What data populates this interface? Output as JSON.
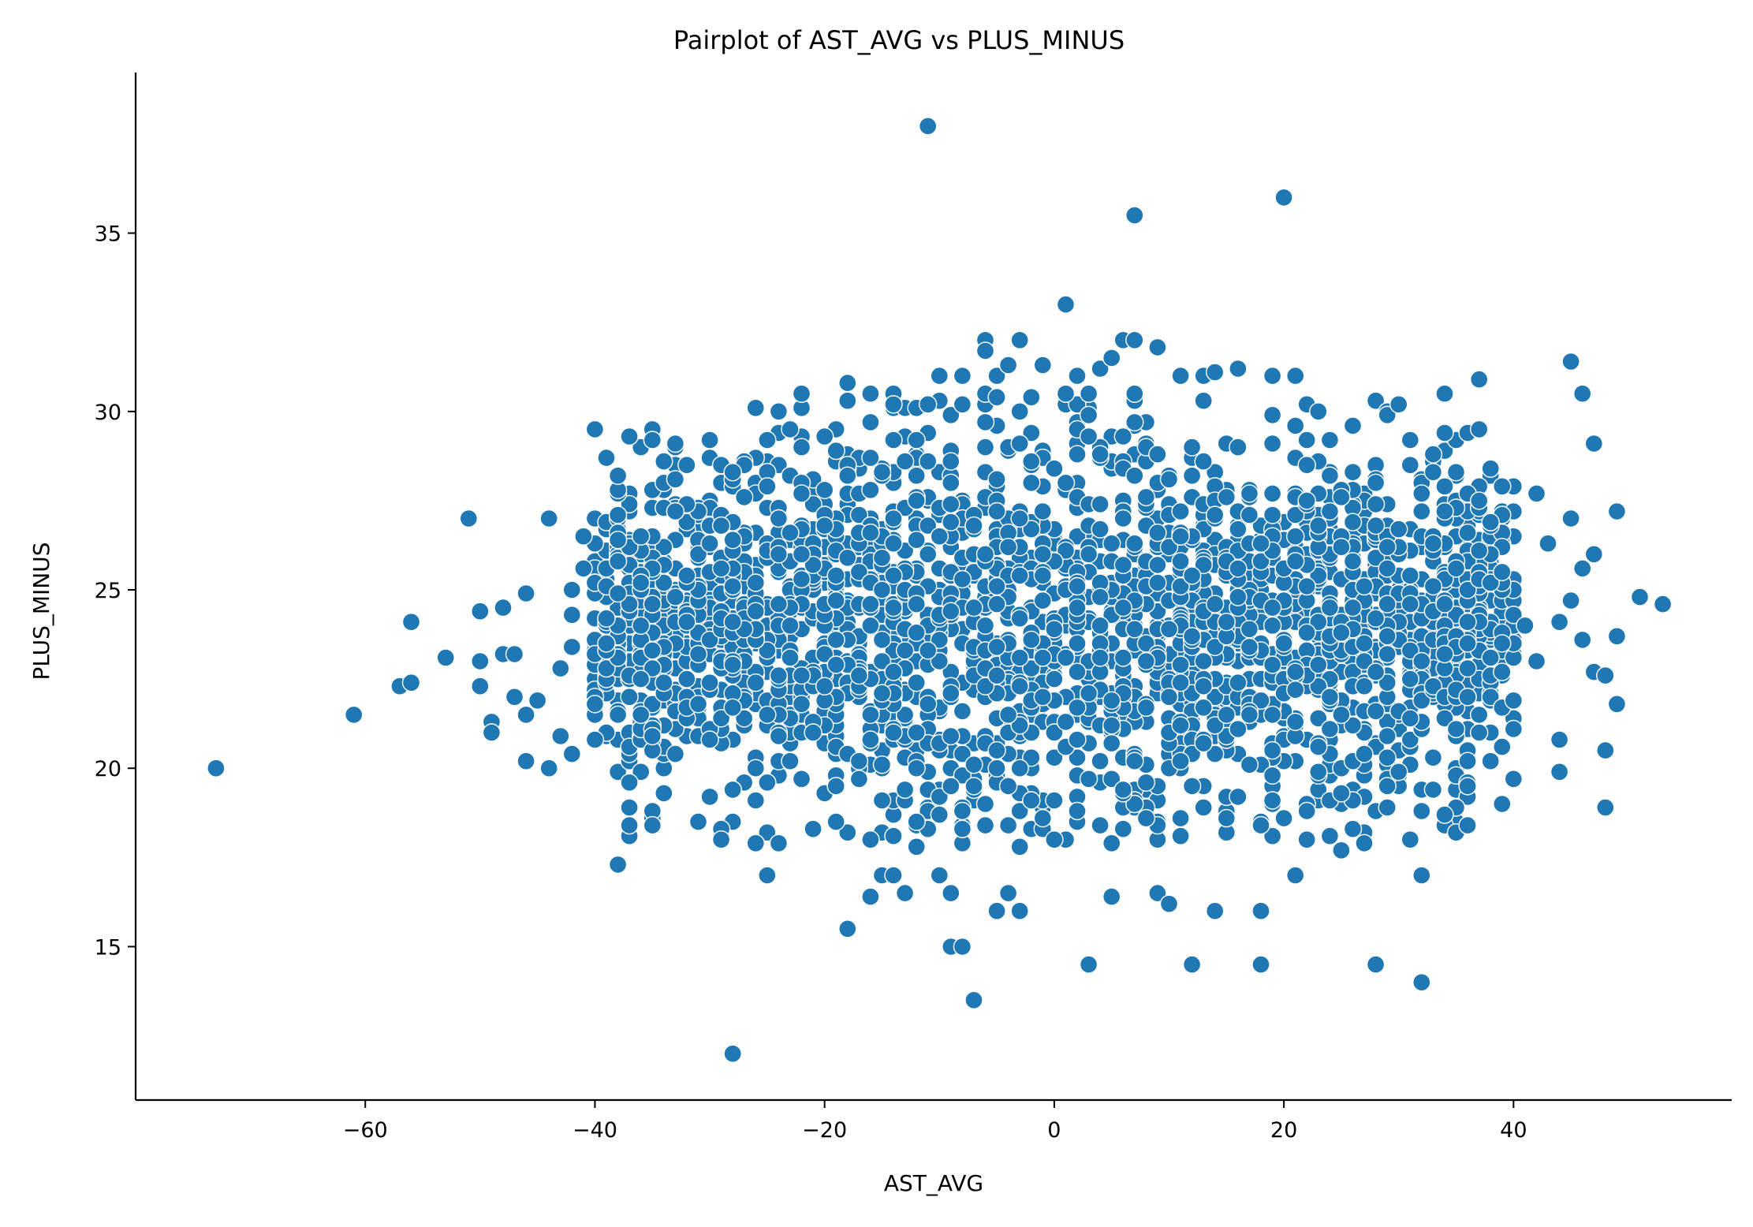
{
  "chart_data": {
    "type": "scatter",
    "title": "Pairplot of AST_AVG vs PLUS_MINUS",
    "xlabel": "AST_AVG",
    "ylabel": "PLUS_MINUS",
    "xlim": [
      -80,
      59
    ],
    "ylim": [
      10.7,
      39.5
    ],
    "xticks": [
      -60,
      -40,
      -20,
      0,
      20,
      40
    ],
    "xtick_labels": [
      "−60",
      "−40",
      "−20",
      "0",
      "20",
      "40"
    ],
    "yticks": [
      15,
      20,
      25,
      30,
      35
    ],
    "ytick_labels": [
      "15",
      "20",
      "25",
      "30",
      "35"
    ],
    "grid": false,
    "legend": "none",
    "marker_color": "#1f77b4",
    "dense_region": {
      "description_of_bulk": "dense cloud of points",
      "x_range": [
        -40,
        40
      ],
      "y_center": 24,
      "y_spread": 3
    },
    "points": [
      [
        -11,
        38.0
      ],
      [
        20,
        36.0
      ],
      [
        7,
        35.5
      ],
      [
        1,
        33.0
      ],
      [
        -73,
        20.0
      ],
      [
        -61,
        21.5
      ],
      [
        -57,
        22.3
      ],
      [
        -56,
        24.1
      ],
      [
        -56,
        22.4
      ],
      [
        -53,
        23.1
      ],
      [
        -51,
        27.0
      ],
      [
        -50,
        24.4
      ],
      [
        -50,
        23.0
      ],
      [
        -50,
        22.3
      ],
      [
        -49,
        21.3
      ],
      [
        -49,
        21.0
      ],
      [
        -48,
        24.5
      ],
      [
        -48,
        23.2
      ],
      [
        -47,
        22.0
      ],
      [
        -47,
        23.2
      ],
      [
        -46,
        20.2
      ],
      [
        -46,
        21.5
      ],
      [
        -46,
        24.9
      ],
      [
        -45,
        21.9
      ],
      [
        -44,
        27.0
      ],
      [
        -44,
        20.0
      ],
      [
        -43,
        22.8
      ],
      [
        -43,
        20.9
      ],
      [
        -42,
        25.0
      ],
      [
        -42,
        24.3
      ],
      [
        -42,
        23.4
      ],
      [
        -42,
        20.4
      ],
      [
        -41,
        26.5
      ],
      [
        -41,
        25.6
      ],
      [
        -40,
        29.5
      ],
      [
        -40,
        21.8
      ],
      [
        -40,
        20.8
      ],
      [
        -38,
        28.2
      ],
      [
        -38,
        27.1
      ],
      [
        -38,
        17.3
      ],
      [
        -37,
        29.3
      ],
      [
        -37,
        19.6
      ],
      [
        -35,
        29.2
      ],
      [
        -35,
        18.4
      ],
      [
        -33,
        29.1
      ],
      [
        -33,
        28.1
      ],
      [
        -32,
        28.5
      ],
      [
        -31,
        18.5
      ],
      [
        -30,
        29.2
      ],
      [
        -29,
        18.3
      ],
      [
        -29,
        18.0
      ],
      [
        -28,
        12.0
      ],
      [
        -28,
        28.3
      ],
      [
        -27,
        27.6
      ],
      [
        -26,
        17.9
      ],
      [
        -25,
        17.0
      ],
      [
        -24,
        30.0
      ],
      [
        -24,
        17.9
      ],
      [
        -22,
        30.5
      ],
      [
        -20,
        29.3
      ],
      [
        -18,
        30.8
      ],
      [
        -18,
        15.5
      ],
      [
        -16,
        30.5
      ],
      [
        -16,
        16.4
      ],
      [
        -15,
        17.0
      ],
      [
        -14,
        17.0
      ],
      [
        -13,
        16.5
      ],
      [
        -12,
        30.1
      ],
      [
        -11,
        30.2
      ],
      [
        -10,
        31.0
      ],
      [
        -10,
        17.0
      ],
      [
        -9,
        15.0
      ],
      [
        -9,
        16.5
      ],
      [
        -8,
        15.0
      ],
      [
        -8,
        31.0
      ],
      [
        -7,
        13.5
      ],
      [
        -6,
        32.0
      ],
      [
        -6,
        31.7
      ],
      [
        -5,
        31.0
      ],
      [
        -5,
        16.0
      ],
      [
        -4,
        16.5
      ],
      [
        -4,
        31.3
      ],
      [
        -3,
        32.0
      ],
      [
        -3,
        16.0
      ],
      [
        -1,
        31.3
      ],
      [
        2,
        31.0
      ],
      [
        3,
        14.5
      ],
      [
        4,
        31.2
      ],
      [
        5,
        31.5
      ],
      [
        5,
        16.4
      ],
      [
        6,
        32.0
      ],
      [
        7,
        32.0
      ],
      [
        9,
        31.8
      ],
      [
        9,
        16.5
      ],
      [
        10,
        16.2
      ],
      [
        11,
        31.0
      ],
      [
        12,
        14.5
      ],
      [
        13,
        31.0
      ],
      [
        14,
        31.1
      ],
      [
        14,
        16.0
      ],
      [
        16,
        31.2
      ],
      [
        18,
        14.5
      ],
      [
        18,
        16.0
      ],
      [
        19,
        31.0
      ],
      [
        21,
        31.0
      ],
      [
        21,
        17.0
      ],
      [
        23,
        30.0
      ],
      [
        25,
        17.7
      ],
      [
        27,
        17.9
      ],
      [
        28,
        14.5
      ],
      [
        30,
        30.2
      ],
      [
        31,
        18.0
      ],
      [
        32,
        14.0
      ],
      [
        32,
        17.0
      ],
      [
        33,
        19.4
      ],
      [
        34,
        18.7
      ],
      [
        34,
        29.4
      ],
      [
        35,
        28.3
      ],
      [
        36,
        18.4
      ],
      [
        36,
        19.5
      ],
      [
        37,
        30.9
      ],
      [
        37,
        27.5
      ],
      [
        38,
        20.2
      ],
      [
        39,
        19.0
      ],
      [
        40,
        21.9
      ],
      [
        40,
        21.1
      ],
      [
        40,
        19.7
      ],
      [
        41,
        24.0
      ],
      [
        42,
        27.7
      ],
      [
        42,
        23.0
      ],
      [
        43,
        26.3
      ],
      [
        44,
        20.8
      ],
      [
        44,
        19.9
      ],
      [
        44,
        24.1
      ],
      [
        45,
        31.4
      ],
      [
        45,
        27.0
      ],
      [
        45,
        24.7
      ],
      [
        46,
        30.5
      ],
      [
        46,
        25.6
      ],
      [
        46,
        23.6
      ],
      [
        47,
        29.1
      ],
      [
        47,
        26.0
      ],
      [
        47,
        22.7
      ],
      [
        48,
        22.6
      ],
      [
        48,
        20.5
      ],
      [
        48,
        18.9
      ],
      [
        49,
        27.2
      ],
      [
        49,
        23.7
      ],
      [
        49,
        21.8
      ],
      [
        51,
        24.8
      ],
      [
        53,
        24.6
      ]
    ]
  }
}
